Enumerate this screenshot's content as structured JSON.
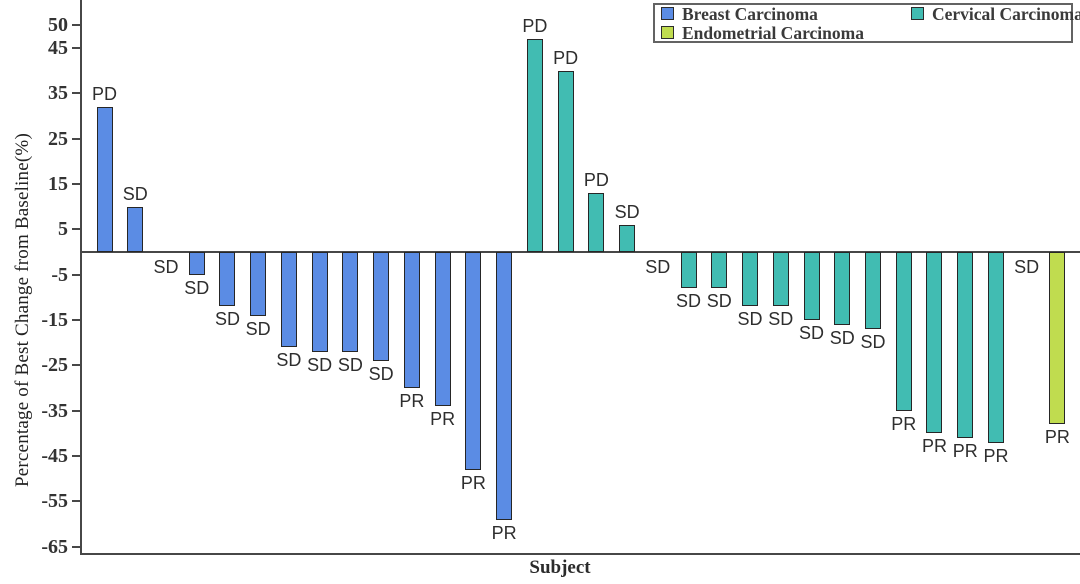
{
  "figure": {
    "y_axis_title": "Percentage of Best Change from Baseline(%)",
    "x_axis_title": "Subject"
  },
  "legend": {
    "position": "top-right",
    "items": [
      {
        "label": "Breast Carcinoma",
        "color": "#5b8ce4"
      },
      {
        "label": "Cervical Carcinoma",
        "color": "#41bcb2"
      },
      {
        "label": "Endometrial Carcinoma",
        "color": "#c0dc4f"
      }
    ]
  },
  "chart_data": {
    "type": "bar",
    "subtype": "waterfall",
    "title": "",
    "xlabel": "Subject",
    "ylabel": "Percentage of Best Change from Baseline(%)",
    "ylim": [
      -66.5,
      55.5
    ],
    "yticks": [
      50,
      45,
      35,
      25,
      15,
      5,
      -5,
      -15,
      -25,
      -35,
      -45,
      -55,
      -65
    ],
    "grid": false,
    "legend_position": "top-right",
    "bar_border_color": "#262626",
    "axis_color": "#474747",
    "response_label_color": "#2e2e2e",
    "series": [
      {
        "name": "Breast Carcinoma",
        "color": "#5b8ce4",
        "values": [
          32,
          10,
          0,
          -5,
          -12,
          -14,
          -21,
          -22,
          -22,
          -24,
          -30,
          -34,
          -48,
          -59
        ],
        "responses": [
          "PD",
          "SD",
          "SD",
          "SD",
          "SD",
          "SD",
          "SD",
          "SD",
          "SD",
          "SD",
          "PR",
          "PR",
          "PR",
          "PR"
        ]
      },
      {
        "name": "Cervical Carcinoma",
        "color": "#41bcb2",
        "values": [
          47,
          40,
          13,
          6,
          0,
          -8,
          -8,
          -12,
          -12,
          -15,
          -16,
          -17,
          -35,
          -40,
          -41,
          -42
        ],
        "responses": [
          "PD",
          "PD",
          "PD",
          "SD",
          "SD",
          "SD",
          "SD",
          "SD",
          "SD",
          "SD",
          "SD",
          "SD",
          "PR",
          "PR",
          "PR",
          "PR"
        ]
      },
      {
        "name": "Endometrial Carcinoma",
        "color": "#c0dc4f",
        "values": [
          0,
          -38
        ],
        "responses": [
          "SD",
          "PR"
        ]
      }
    ]
  }
}
